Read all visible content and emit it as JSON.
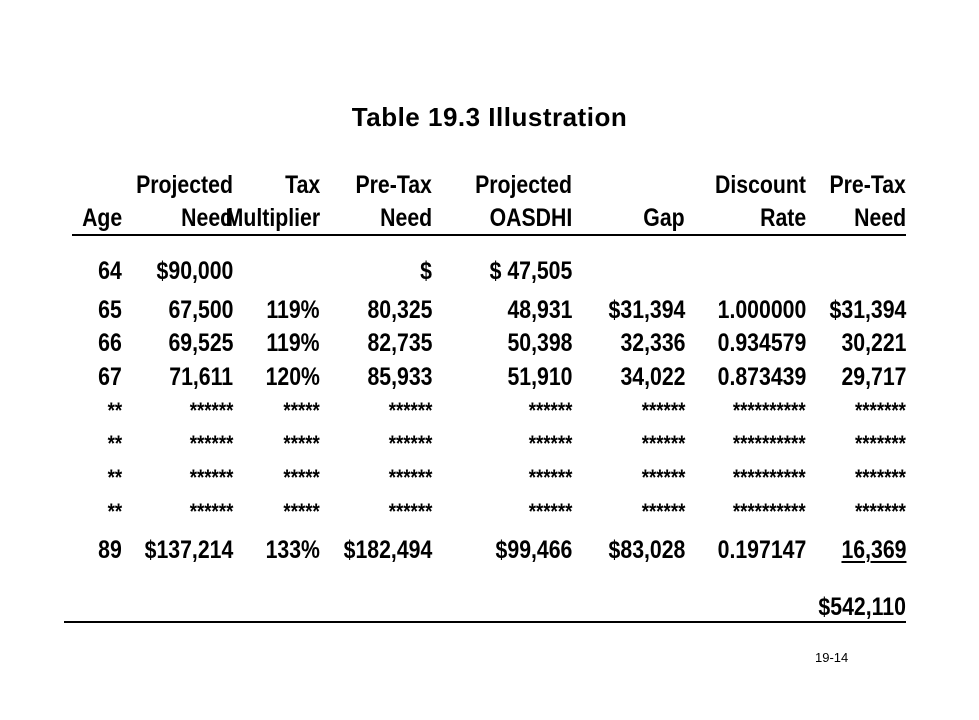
{
  "title": "Table 19.3 Illustration",
  "headers": {
    "line1": [
      "",
      "Projected",
      "Tax",
      "Pre-Tax",
      "Projected",
      "",
      "Discount",
      "Pre-Tax"
    ],
    "line2": [
      "Age",
      "Need",
      "Multiplier",
      "Need",
      "OASDHI",
      "Gap",
      "Rate",
      "Need"
    ]
  },
  "rows": [
    [
      "64",
      "$90,000",
      "",
      "$",
      "$ 47,505",
      "",
      "",
      ""
    ],
    [
      "65",
      "67,500",
      "119%",
      "80,325",
      "48,931",
      "$31,394",
      "1.000000",
      "$31,394"
    ],
    [
      "66",
      "69,525",
      "119%",
      "82,735",
      "50,398",
      "32,336",
      "0.934579",
      "30,221"
    ],
    [
      "67",
      "71,611",
      "120%",
      "85,933",
      "51,910",
      "34,022",
      "0.873439",
      "29,717"
    ],
    [
      "**",
      "******",
      "*****",
      "******",
      "******",
      "******",
      "**********",
      "*******"
    ],
    [
      "**",
      "******",
      "*****",
      "******",
      "******",
      "******",
      "**********",
      "*******"
    ],
    [
      "**",
      "******",
      "*****",
      "******",
      "******",
      "******",
      "**********",
      "*******"
    ],
    [
      "**",
      "******",
      "*****",
      "******",
      "******",
      "******",
      "**********",
      "*******"
    ],
    [
      "89",
      "$137,214",
      "133%",
      "$182,494",
      "$99,466",
      "$83,028",
      "0.197147",
      "16,369"
    ]
  ],
  "total": "$542,110",
  "page_number": "19-14"
}
